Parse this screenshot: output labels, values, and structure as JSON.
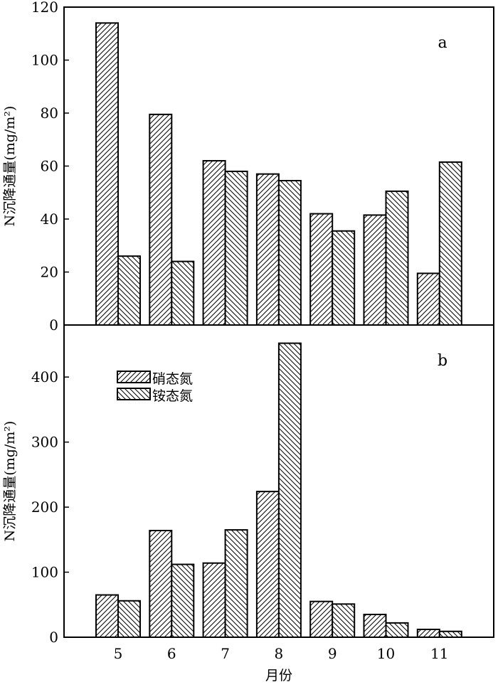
{
  "chart_data": [
    {
      "panel": "a",
      "type": "bar",
      "categories": [
        "5",
        "6",
        "7",
        "8",
        "9",
        "10",
        "11"
      ],
      "series": [
        {
          "name": "硝态氮",
          "values": [
            114,
            79.5,
            62,
            57,
            42,
            41.5,
            19.5
          ]
        },
        {
          "name": "铵态氮",
          "values": [
            26,
            24,
            58,
            54.5,
            35.5,
            50.5,
            61.5
          ]
        }
      ],
      "ylabel": "N沉降通量(mg/m²)",
      "ylim": [
        0,
        120
      ],
      "yticks": [
        0,
        20,
        40,
        60,
        80,
        100,
        120
      ]
    },
    {
      "panel": "b",
      "type": "bar",
      "categories": [
        "5",
        "6",
        "7",
        "8",
        "9",
        "10",
        "11"
      ],
      "series": [
        {
          "name": "硝态氮",
          "values": [
            65,
            164,
            114,
            224,
            55,
            35,
            12
          ]
        },
        {
          "name": "铵态氮",
          "values": [
            56,
            112,
            165,
            452,
            51,
            22,
            9
          ]
        }
      ],
      "xlabel": "月份",
      "ylabel": "N沉降通量(mg/m²)",
      "ylim": [
        0,
        480
      ],
      "yticks": [
        0,
        100,
        200,
        300,
        400
      ]
    }
  ],
  "legend": {
    "items": [
      {
        "label": "硝态氮",
        "pattern": "hatch-forward"
      },
      {
        "label": "铵态氮",
        "pattern": "hatch-backward"
      }
    ]
  }
}
